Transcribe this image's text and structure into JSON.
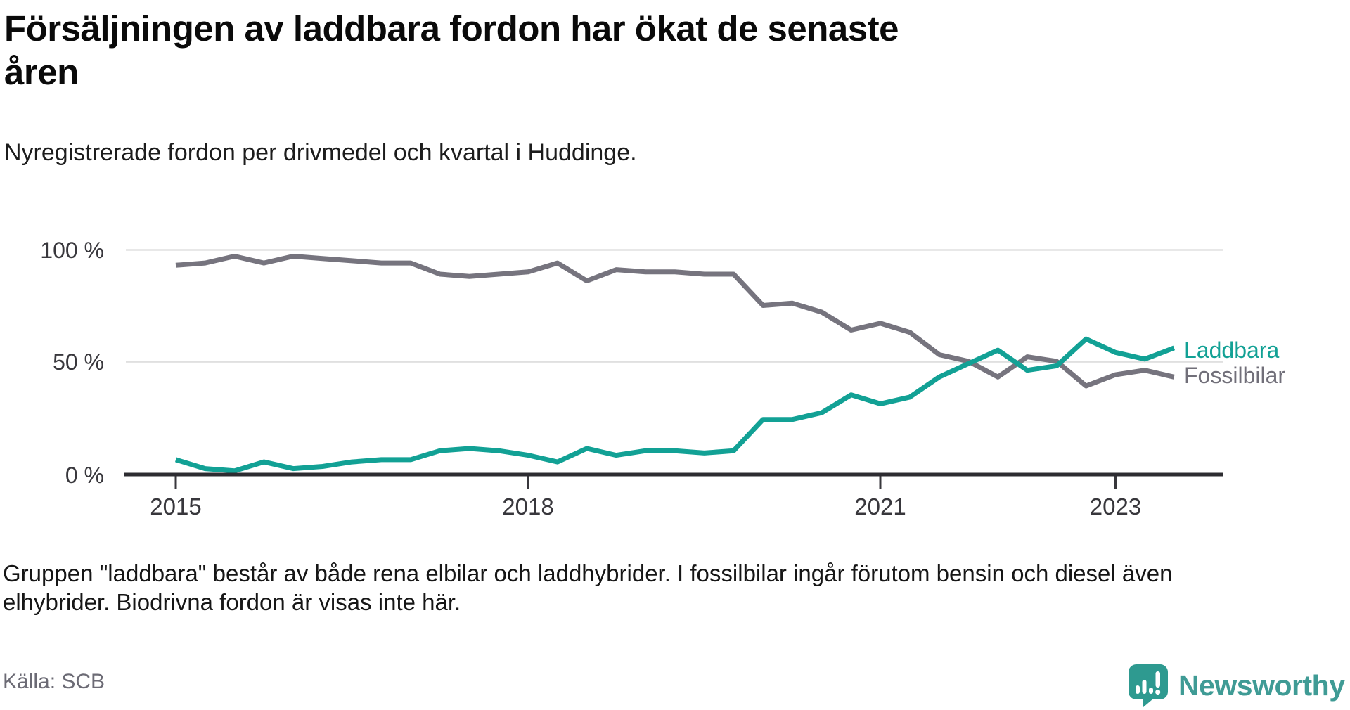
{
  "header": {
    "title_line1": "Försäljningen av laddbara fordon har ökat de senaste",
    "title_line2": "åren",
    "subtitle": "Nyregistrerade fordon per drivmedel och kvartal i Huddinge."
  },
  "chart_data": {
    "type": "line",
    "title": "Försäljningen av laddbara fordon har ökat de senaste åren",
    "subtitle": "Nyregistrerade fordon per drivmedel och kvartal i Huddinge.",
    "unit": "%",
    "ylim": [
      0,
      100
    ],
    "grid": "horizontal",
    "legend_position": "right-line-end",
    "y_ticks": [
      {
        "value": 100,
        "label": "100 %"
      },
      {
        "value": 50,
        "label": "50 %"
      },
      {
        "value": 0,
        "label": "0 %"
      }
    ],
    "x_ticks": [
      {
        "index": 0,
        "label": "2015"
      },
      {
        "index": 12,
        "label": "2018"
      },
      {
        "index": 24,
        "label": "2021"
      },
      {
        "index": 32,
        "label": "2023"
      }
    ],
    "x": [
      "2015 Q1",
      "2015 Q2",
      "2015 Q3",
      "2015 Q4",
      "2016 Q1",
      "2016 Q2",
      "2016 Q3",
      "2016 Q4",
      "2017 Q1",
      "2017 Q2",
      "2017 Q3",
      "2017 Q4",
      "2018 Q1",
      "2018 Q2",
      "2018 Q3",
      "2018 Q4",
      "2019 Q1",
      "2019 Q2",
      "2019 Q3",
      "2019 Q4",
      "2020 Q1",
      "2020 Q2",
      "2020 Q3",
      "2020 Q4",
      "2021 Q1",
      "2021 Q2",
      "2021 Q3",
      "2021 Q4",
      "2022 Q1",
      "2022 Q2",
      "2022 Q3",
      "2022 Q4",
      "2023 Q1",
      "2023 Q2",
      "2023 Q3"
    ],
    "series": [
      {
        "name": "Laddbara",
        "color": "#12A195",
        "values": [
          6,
          2,
          1,
          5,
          2,
          3,
          5,
          6,
          6,
          10,
          11,
          10,
          8,
          5,
          11,
          8,
          10,
          10,
          9,
          10,
          24,
          24,
          27,
          35,
          31,
          34,
          43,
          49,
          55,
          46,
          48,
          60,
          54,
          51,
          56
        ]
      },
      {
        "name": "Fossilbilar",
        "color": "#76747E",
        "values": [
          93,
          94,
          97,
          94,
          97,
          96,
          95,
          94,
          94,
          89,
          88,
          89,
          90,
          94,
          86,
          91,
          90,
          90,
          89,
          89,
          75,
          76,
          72,
          64,
          67,
          63,
          53,
          50,
          43,
          52,
          50,
          39,
          44,
          46,
          43
        ]
      }
    ]
  },
  "footer": {
    "note_line1": "Gruppen \"laddbara\" består av både rena elbilar och laddhybrider. I fossilbilar ingår förutom bensin och diesel även",
    "note_line2": "elhybrider. Biodrivna fordon är visas inte här.",
    "source": "Källa: SCB",
    "brand_name": "Newsworthy",
    "brand_color": "#3F9B95",
    "brand_icon_color": "#2E9A90"
  }
}
